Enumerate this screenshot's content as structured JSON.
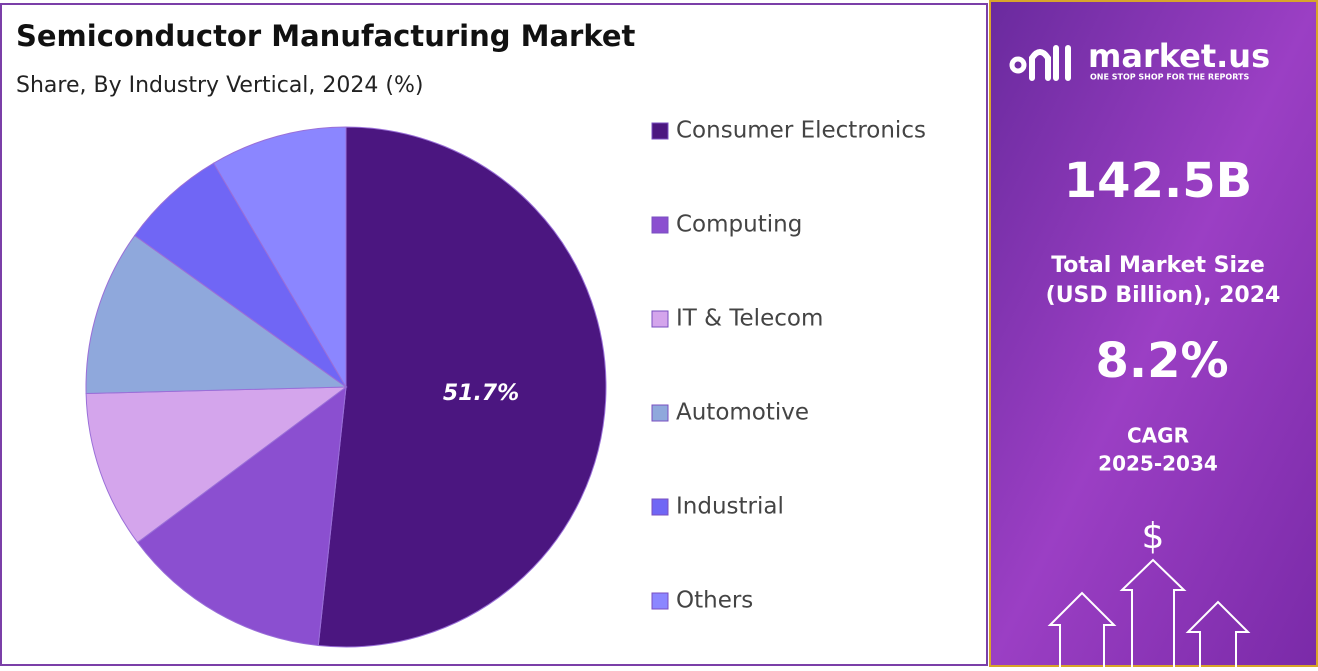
{
  "chart_data": {
    "type": "pie",
    "title": "Semiconductor Manufacturing Market",
    "subtitle": "Share, By Industry Vertical, 2024 (%)",
    "categories": [
      "Consumer Electronics",
      "Computing",
      "IT & Telecom",
      "Automotive",
      "Industrial",
      "Others"
    ],
    "values": [
      51.7,
      13.1,
      9.8,
      10.3,
      6.6,
      8.5
    ],
    "value_labels": [
      "51.7%",
      null,
      null,
      null,
      null,
      null
    ],
    "colors": [
      "#4b1680",
      "#8b4fd0",
      "#d4a5ec",
      "#8fa8dc",
      "#7066f5",
      "#8b86ff"
    ],
    "legend": "right"
  },
  "side_panel": {
    "brand": "market.us",
    "tagline": "ONE STOP SHOP FOR THE REPORTS",
    "market_size": "142.5B",
    "market_size_label": [
      "Total Market Size",
      "(USD Billion), 2024"
    ],
    "cagr": "8.2%",
    "cagr_label": [
      "CAGR",
      "2025-2034"
    ],
    "icon": "$"
  }
}
